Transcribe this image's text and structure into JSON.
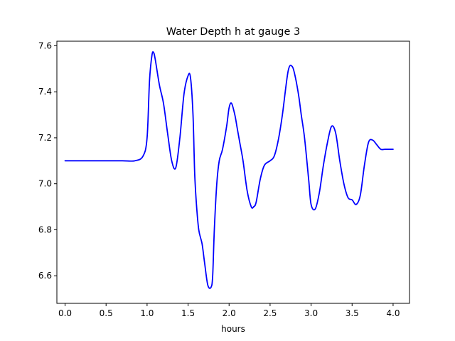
{
  "chart_data": {
    "type": "line",
    "title": "Water Depth h at gauge 3",
    "xlabel": "hours",
    "ylabel": "",
    "xlim": [
      -0.1,
      4.2
    ],
    "ylim": [
      6.48,
      7.62
    ],
    "grid": false,
    "x_ticks": [
      {
        "value": 0.0,
        "label": "0.0"
      },
      {
        "value": 0.5,
        "label": "0.5"
      },
      {
        "value": 1.0,
        "label": "1.0"
      },
      {
        "value": 1.5,
        "label": "1.5"
      },
      {
        "value": 2.0,
        "label": "2.0"
      },
      {
        "value": 2.5,
        "label": "2.5"
      },
      {
        "value": 3.0,
        "label": "3.0"
      },
      {
        "value": 3.5,
        "label": "3.5"
      },
      {
        "value": 4.0,
        "label": "4.0"
      }
    ],
    "y_ticks": [
      {
        "value": 6.6,
        "label": "6.6"
      },
      {
        "value": 6.8,
        "label": "6.8"
      },
      {
        "value": 7.0,
        "label": "7.0"
      },
      {
        "value": 7.2,
        "label": "7.2"
      },
      {
        "value": 7.4,
        "label": "7.4"
      },
      {
        "value": 7.6,
        "label": "7.6"
      }
    ],
    "series": [
      {
        "color": "#0000ff",
        "x": [
          0.0,
          0.3,
          0.5,
          0.7,
          0.85,
          0.95,
          1.0,
          1.03,
          1.06,
          1.08,
          1.1,
          1.15,
          1.2,
          1.25,
          1.3,
          1.35,
          1.4,
          1.45,
          1.5,
          1.53,
          1.56,
          1.58,
          1.6,
          1.63,
          1.67,
          1.7,
          1.74,
          1.78,
          1.8,
          1.82,
          1.85,
          1.88,
          1.92,
          1.97,
          2.0,
          2.03,
          2.07,
          2.1,
          2.13,
          2.17,
          2.22,
          2.27,
          2.3,
          2.33,
          2.38,
          2.43,
          2.5,
          2.55,
          2.6,
          2.65,
          2.72,
          2.77,
          2.81,
          2.85,
          2.88,
          2.92,
          2.97,
          3.0,
          3.05,
          3.1,
          3.15,
          3.2,
          3.25,
          3.3,
          3.35,
          3.4,
          3.45,
          3.5,
          3.55,
          3.6,
          3.65,
          3.7,
          3.75,
          3.8,
          3.85,
          3.9,
          3.95,
          4.0
        ],
        "y": [
          7.1,
          7.1,
          7.1,
          7.1,
          7.1,
          7.12,
          7.2,
          7.45,
          7.56,
          7.57,
          7.54,
          7.43,
          7.35,
          7.22,
          7.1,
          7.07,
          7.2,
          7.39,
          7.47,
          7.46,
          7.3,
          7.05,
          6.92,
          6.8,
          6.74,
          6.66,
          6.56,
          6.55,
          6.6,
          6.8,
          7.0,
          7.1,
          7.15,
          7.25,
          7.33,
          7.35,
          7.3,
          7.24,
          7.18,
          7.1,
          6.97,
          6.9,
          6.9,
          6.92,
          7.02,
          7.08,
          7.1,
          7.12,
          7.19,
          7.3,
          7.49,
          7.51,
          7.46,
          7.38,
          7.3,
          7.2,
          7.02,
          6.91,
          6.89,
          6.96,
          7.08,
          7.18,
          7.25,
          7.22,
          7.1,
          7.0,
          6.94,
          6.93,
          6.91,
          6.95,
          7.08,
          7.18,
          7.19,
          7.17,
          7.15,
          7.15,
          7.15,
          7.15
        ]
      }
    ]
  }
}
